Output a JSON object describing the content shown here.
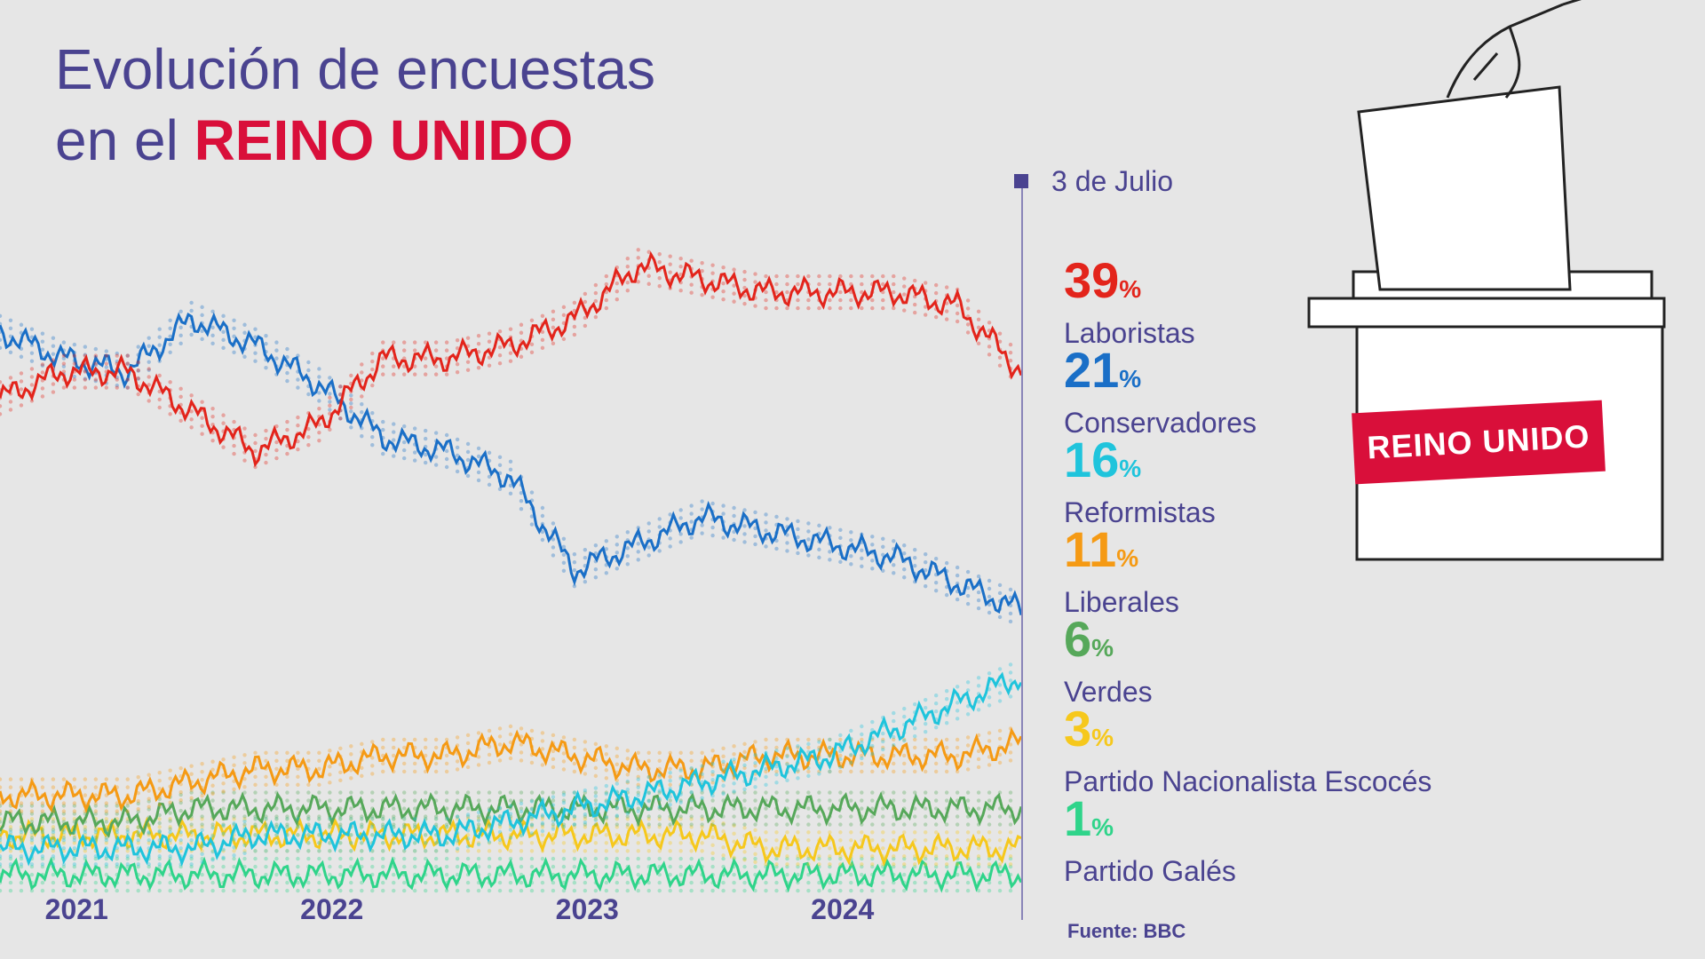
{
  "title": {
    "line1": "Evolución de encuestas",
    "line2_prefix": "en el ",
    "line2_highlight": "REINO UNIDO"
  },
  "marker": {
    "label": "3 de Julio"
  },
  "source": "Fuente: BBC",
  "stamp_text": "REINO UNIDO",
  "chart_data": {
    "type": "line",
    "x_ticks": [
      "2021",
      "2022",
      "2023",
      "2024"
    ],
    "x": [
      "2020-07",
      "2020-10",
      "2021-01",
      "2021-04",
      "2021-07",
      "2021-10",
      "2022-01",
      "2022-04",
      "2022-07",
      "2022-10",
      "2023-01",
      "2023-04",
      "2023-07",
      "2023-10",
      "2024-01",
      "2024-04",
      "2024-07"
    ],
    "ylim": [
      0,
      55
    ],
    "series": [
      {
        "name": "Laboristas",
        "final": "39",
        "color": "#e3241b",
        "values": [
          37,
          39,
          39,
          36,
          33,
          35,
          40,
          40,
          41,
          43,
          47,
          46,
          45,
          45,
          45,
          44,
          39
        ]
      },
      {
        "name": "Conservadores",
        "final": "21",
        "color": "#1a6fc7",
        "values": [
          42,
          40,
          39,
          43,
          41,
          38,
          34,
          33,
          31,
          24,
          26,
          28,
          27,
          26,
          25,
          23,
          21
        ]
      },
      {
        "name": "Reformistas",
        "final": "16",
        "color": "#1fc4dc",
        "values": [
          3,
          3,
          3,
          3,
          4,
          4,
          4,
          4,
          5,
          6,
          7,
          8,
          9,
          10,
          12,
          14,
          16
        ]
      },
      {
        "name": "Liberales",
        "final": "11",
        "color": "#f59a14",
        "values": [
          7,
          7,
          7,
          8,
          9,
          9,
          10,
          10,
          11,
          10,
          9,
          9,
          10,
          10,
          10,
          10,
          11
        ]
      },
      {
        "name": "Verdes",
        "final": "6",
        "color": "#56a85a",
        "values": [
          5,
          5,
          5,
          6,
          6,
          6,
          6,
          6,
          6,
          6,
          6,
          6,
          6,
          6,
          6,
          6,
          6
        ]
      },
      {
        "name": "Partido Nacionalista Escocés",
        "final": "3",
        "color": "#f6c81c",
        "values": [
          4,
          4,
          4,
          4,
          4,
          4,
          4,
          4,
          4,
          4,
          4,
          4,
          3,
          3,
          3,
          3,
          3
        ]
      },
      {
        "name": "Partido Galés",
        "final": "1",
        "color": "#2fd48a",
        "values": [
          1,
          1,
          1,
          1,
          1,
          1,
          1,
          1,
          1,
          1,
          1,
          1,
          1,
          1,
          1,
          1,
          1
        ]
      }
    ]
  }
}
